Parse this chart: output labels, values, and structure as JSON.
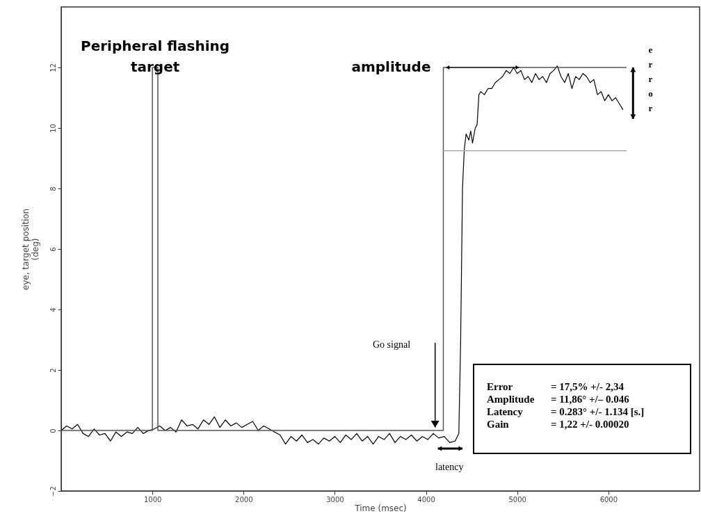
{
  "chart_data": {
    "type": "line",
    "xlabel": "Time   (msec)",
    "ylabel": "eye, target position\n(deg)",
    "xlim": [
      0,
      7000
    ],
    "xticks": [
      1000,
      2000,
      3000,
      4000,
      5000,
      6000
    ],
    "ylim": [
      -2,
      14
    ],
    "yticks": [
      -2,
      0,
      2,
      4,
      6,
      8,
      10,
      12
    ],
    "grid": false,
    "marker": "none",
    "line_style": "solid",
    "series": [
      {
        "color": "#000000",
        "x": [
          0,
          60,
          120,
          180,
          240,
          300,
          360,
          420,
          480,
          540,
          600,
          660,
          720,
          780,
          840,
          900,
          960,
          1020,
          1080,
          1140,
          1200,
          1260,
          1320,
          1380,
          1440,
          1500,
          1560,
          1620,
          1680,
          1740,
          1800,
          1860,
          1920,
          1980,
          2040,
          2100,
          2160,
          2220,
          2280,
          2340,
          2400,
          2460,
          2520,
          2580,
          2640,
          2700,
          2760,
          2820,
          2880,
          2940,
          3000,
          3060,
          3120,
          3180,
          3240,
          3300,
          3360,
          3420,
          3480,
          3540,
          3600,
          3660,
          3720,
          3780,
          3840,
          3900,
          3960,
          4020,
          4080,
          4140,
          4200,
          4260,
          4320,
          4360,
          4380,
          4400,
          4420,
          4440,
          4470,
          4490,
          4510,
          4540,
          4560,
          4580,
          4600,
          4640,
          4680,
          4720,
          4760,
          4800,
          4840,
          4880,
          4920,
          4960,
          5000,
          5040,
          5080,
          5120,
          5160,
          5200,
          5240,
          5280,
          5320,
          5360,
          5400,
          5440,
          5480,
          5520,
          5560,
          5600,
          5640,
          5680,
          5720,
          5760,
          5800,
          5840,
          5880,
          5920,
          5960,
          6000,
          6040,
          6080,
          6120,
          6160
        ],
        "values": [
          0.0,
          0.15,
          0.05,
          0.2,
          -0.1,
          -0.2,
          0.05,
          -0.15,
          -0.1,
          -0.35,
          -0.05,
          -0.2,
          -0.05,
          -0.1,
          0.1,
          -0.1,
          0.0,
          0.05,
          0.15,
          0.0,
          0.1,
          -0.05,
          0.35,
          0.15,
          0.2,
          0.05,
          0.35,
          0.2,
          0.45,
          0.1,
          0.35,
          0.15,
          0.25,
          0.1,
          0.2,
          0.3,
          0.0,
          0.15,
          0.05,
          -0.05,
          -0.15,
          -0.45,
          -0.2,
          -0.35,
          -0.15,
          -0.4,
          -0.3,
          -0.45,
          -0.25,
          -0.35,
          -0.2,
          -0.4,
          -0.15,
          -0.3,
          -0.1,
          -0.35,
          -0.2,
          -0.45,
          -0.2,
          -0.3,
          -0.1,
          -0.4,
          -0.2,
          -0.3,
          -0.15,
          -0.35,
          -0.2,
          -0.3,
          -0.1,
          -0.25,
          -0.2,
          -0.4,
          -0.35,
          -0.1,
          3.0,
          8.0,
          9.3,
          9.8,
          9.6,
          9.9,
          9.5,
          10.0,
          10.1,
          11.1,
          11.2,
          11.1,
          11.3,
          11.3,
          11.5,
          11.6,
          11.7,
          11.9,
          11.8,
          12.0,
          11.8,
          11.9,
          11.6,
          11.7,
          11.5,
          11.8,
          11.6,
          11.7,
          11.5,
          11.8,
          11.9,
          12.05,
          11.7,
          11.5,
          11.8,
          11.3,
          11.7,
          11.6,
          11.8,
          11.7,
          11.5,
          11.6,
          11.1,
          11.2,
          10.9,
          11.1,
          10.9,
          11.0,
          10.8,
          10.6
        ]
      },
      {
        "color": "#555555",
        "x": [
          0,
          1000,
          1000,
          1060,
          1060,
          4190,
          4190,
          6200
        ],
        "values": [
          0,
          0,
          12,
          12,
          0,
          0,
          12,
          12
        ]
      },
      {
        "color": "#aaaaaa",
        "x": [
          4190,
          6200
        ],
        "values": [
          9.25,
          9.25
        ]
      }
    ],
    "annotations": [
      {
        "text": "Peripheral flashing target",
        "x": 1030,
        "y": 12
      },
      {
        "text": "amplitude",
        "x": 4190,
        "y": 12
      },
      "error",
      "Go signal",
      "latency",
      "Error = 17,5%  +/-  2,34",
      "Amplitude = 11,86° +/– 0.046",
      "Latency = 0.283° +/- 1.134 [s.]",
      "Gain = 1,22 +/-  0.00020"
    ]
  }
}
